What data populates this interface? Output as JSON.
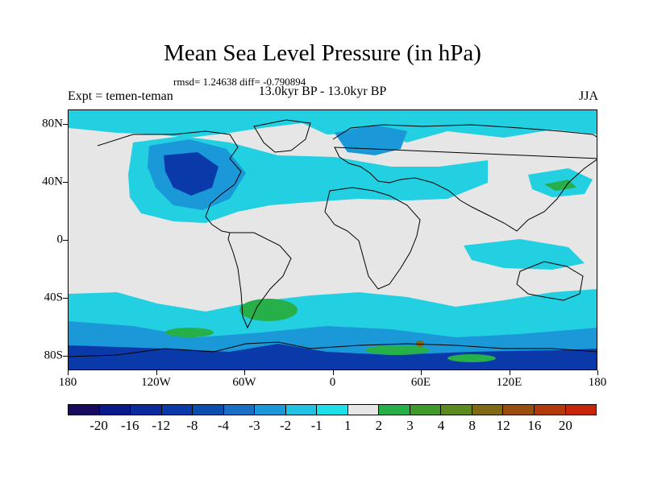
{
  "title": "Mean Sea Level Pressure (in hPa)",
  "stats": "rmsd= 1.24638  diff= -0.790894",
  "subtitle": "13.0kyr BP - 13.0kyr BP",
  "experiment": "Expt = temen-teman",
  "season": "JJA",
  "axes": {
    "lat_labels": [
      "80N",
      "40N",
      "0",
      "40S",
      "80S"
    ],
    "lat_values": [
      80,
      40,
      0,
      -40,
      -80
    ],
    "lon_labels": [
      "180",
      "120W",
      "60W",
      "0",
      "60E",
      "120E",
      "180"
    ],
    "lon_values": [
      -180,
      -120,
      -60,
      0,
      60,
      120,
      180
    ]
  },
  "colorbar": {
    "labels": [
      "-20",
      "-16",
      "-12",
      "-8",
      "-4",
      "-3",
      "-2",
      "-1",
      "1",
      "2",
      "3",
      "4",
      "8",
      "12",
      "16",
      "20"
    ],
    "colors": [
      "#1a0a5e",
      "#0a1a8a",
      "#0a2a9e",
      "#0a3aaa",
      "#0a4eb0",
      "#1a6ec4",
      "#1a98d8",
      "#22c2e2",
      "#1ee0e6",
      "#e6e6e6",
      "#27b04a",
      "#3f9a2a",
      "#5c8a1e",
      "#806a14",
      "#9a4e0e",
      "#b23a0a",
      "#c8260a"
    ]
  },
  "colors": {
    "land_outline": "#000000",
    "map_background": "#e6e6e6",
    "light_cyan": "#22d0e2",
    "mid_blue": "#1a98d8",
    "dark_blue": "#0a3aaa",
    "green": "#27b04a"
  }
}
